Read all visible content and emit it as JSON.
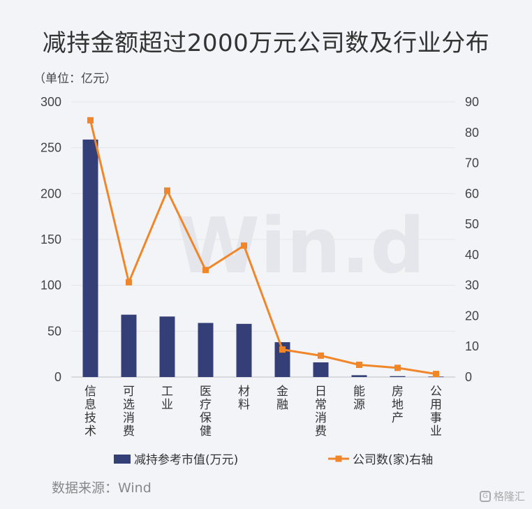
{
  "title": "减持金额超过2000万元公司数及行业分布",
  "unit_note": "（单位：亿元）",
  "source_note": "数据来源：Wind",
  "watermark": "Win.d",
  "brand": {
    "label": "格隆汇",
    "icon": "G"
  },
  "colors": {
    "bar": "#343f78",
    "line": "#f0862a",
    "grid": "#e4e5ea"
  },
  "chart_data": {
    "type": "bar+line",
    "title": "减持金额超过2000万元公司数及行业分布",
    "categories": [
      "信息技术",
      "可选消费",
      "工业",
      "医疗保健",
      "材料",
      "金融",
      "日常消费",
      "能源",
      "房地产",
      "公用事业"
    ],
    "series": [
      {
        "name": "减持参考市值(万元)",
        "type": "bar",
        "axis": "left",
        "values": [
          259,
          68,
          66,
          59,
          58,
          38,
          16,
          2,
          1,
          0.5
        ]
      },
      {
        "name": "公司数(家)右轴",
        "type": "line",
        "axis": "right",
        "values": [
          84,
          31,
          61,
          35,
          43,
          9,
          7,
          4,
          3,
          1
        ]
      }
    ],
    "y_left": {
      "min": 0,
      "max": 300,
      "ticks": [
        0,
        50,
        100,
        150,
        200,
        250,
        300
      ]
    },
    "y_right": {
      "min": 0,
      "max": 90,
      "ticks": [
        0,
        10,
        20,
        30,
        40,
        50,
        60,
        70,
        80,
        90
      ]
    },
    "grid": true,
    "legend_position": "bottom"
  }
}
